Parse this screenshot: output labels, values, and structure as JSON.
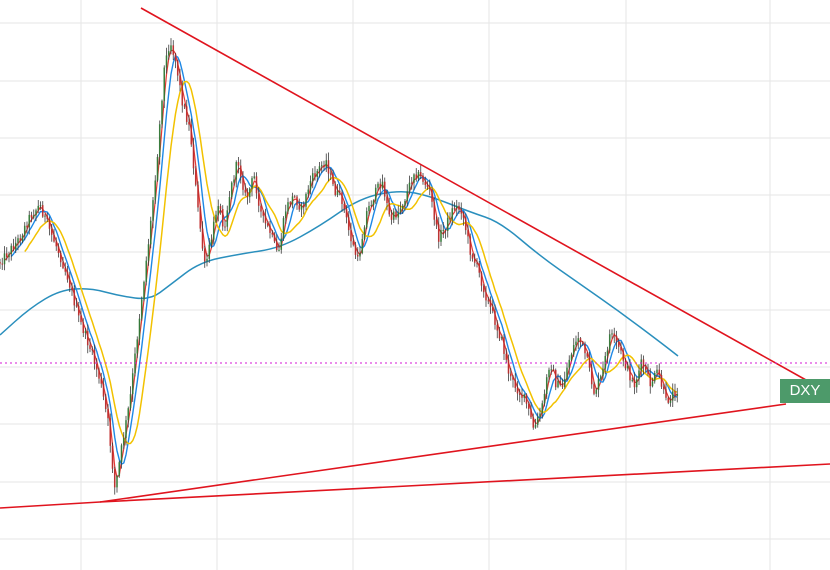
{
  "chart_data": {
    "type": "candlestick",
    "symbol_label": "DXY",
    "x": {
      "bars": 300
    },
    "ylim": [
      0,
      570
    ],
    "grid": true,
    "legend": "none",
    "colors": {
      "background": "#ffffff",
      "grid": "#e6e6e6",
      "candles": "#3a3a3a",
      "candles_up_hint": "#2e7d32",
      "candles_down_hint": "#c62828",
      "ma_fast": "#e53935",
      "ma_mid": "#1e88e5",
      "ma_slow": "#f2c200",
      "ma_long": "#2a8fbd",
      "trendlines": "#e0141e",
      "price_dotted_line": "#d61ad6",
      "ticker_bg": "#4d9a6a"
    },
    "price_anchor_points": [
      [
        0,
        262
      ],
      [
        10,
        250
      ],
      [
        20,
        238
      ],
      [
        30,
        216
      ],
      [
        40,
        205
      ],
      [
        48,
        226
      ],
      [
        58,
        250
      ],
      [
        68,
        278
      ],
      [
        78,
        316
      ],
      [
        90,
        348
      ],
      [
        100,
        380
      ],
      [
        108,
        422
      ],
      [
        115,
        490
      ],
      [
        122,
        446
      ],
      [
        130,
        400
      ],
      [
        140,
        312
      ],
      [
        150,
        230
      ],
      [
        158,
        148
      ],
      [
        164,
        70
      ],
      [
        170,
        40
      ],
      [
        176,
        62
      ],
      [
        182,
        100
      ],
      [
        190,
        130
      ],
      [
        198,
        210
      ],
      [
        205,
        268
      ],
      [
        212,
        236
      ],
      [
        218,
        200
      ],
      [
        224,
        228
      ],
      [
        230,
        192
      ],
      [
        238,
        160
      ],
      [
        246,
        200
      ],
      [
        254,
        176
      ],
      [
        262,
        218
      ],
      [
        270,
        232
      ],
      [
        278,
        256
      ],
      [
        286,
        208
      ],
      [
        294,
        196
      ],
      [
        302,
        210
      ],
      [
        310,
        182
      ],
      [
        318,
        170
      ],
      [
        326,
        160
      ],
      [
        334,
        190
      ],
      [
        342,
        200
      ],
      [
        350,
        236
      ],
      [
        358,
        262
      ],
      [
        366,
        214
      ],
      [
        374,
        196
      ],
      [
        382,
        180
      ],
      [
        390,
        220
      ],
      [
        398,
        212
      ],
      [
        406,
        196
      ],
      [
        414,
        172
      ],
      [
        422,
        178
      ],
      [
        430,
        192
      ],
      [
        438,
        238
      ],
      [
        446,
        226
      ],
      [
        454,
        206
      ],
      [
        462,
        210
      ],
      [
        470,
        250
      ],
      [
        478,
        270
      ],
      [
        486,
        296
      ],
      [
        494,
        318
      ],
      [
        502,
        342
      ],
      [
        510,
        378
      ],
      [
        518,
        390
      ],
      [
        526,
        402
      ],
      [
        534,
        430
      ],
      [
        542,
        408
      ],
      [
        550,
        360
      ],
      [
        556,
        384
      ],
      [
        562,
        388
      ],
      [
        570,
        356
      ],
      [
        578,
        336
      ],
      [
        586,
        356
      ],
      [
        594,
        392
      ],
      [
        602,
        376
      ],
      [
        610,
        334
      ],
      [
        618,
        346
      ],
      [
        626,
        366
      ],
      [
        634,
        386
      ],
      [
        642,
        362
      ],
      [
        650,
        384
      ],
      [
        658,
        372
      ],
      [
        666,
        402
      ],
      [
        676,
        390
      ]
    ],
    "trendlines": [
      {
        "from": [
          141,
          8
        ],
        "to": [
          806,
          380
        ]
      },
      {
        "from": [
          0,
          508
        ],
        "to": [
          100,
          502
        ]
      },
      {
        "from": [
          100,
          502
        ],
        "to": [
          786,
          404
        ]
      },
      {
        "from": [
          100,
          502
        ],
        "to": [
          830,
          464
        ]
      }
    ],
    "horizontal_level": 363,
    "long_ma_points": [
      [
        0,
        335
      ],
      [
        30,
        308
      ],
      [
        60,
        290
      ],
      [
        90,
        288
      ],
      [
        120,
        296
      ],
      [
        150,
        300
      ],
      [
        170,
        285
      ],
      [
        200,
        262
      ],
      [
        240,
        254
      ],
      [
        280,
        248
      ],
      [
        320,
        226
      ],
      [
        360,
        198
      ],
      [
        400,
        190
      ],
      [
        430,
        196
      ],
      [
        470,
        212
      ],
      [
        500,
        222
      ],
      [
        540,
        256
      ],
      [
        580,
        284
      ],
      [
        620,
        312
      ],
      [
        660,
        342
      ],
      [
        678,
        356
      ]
    ]
  }
}
